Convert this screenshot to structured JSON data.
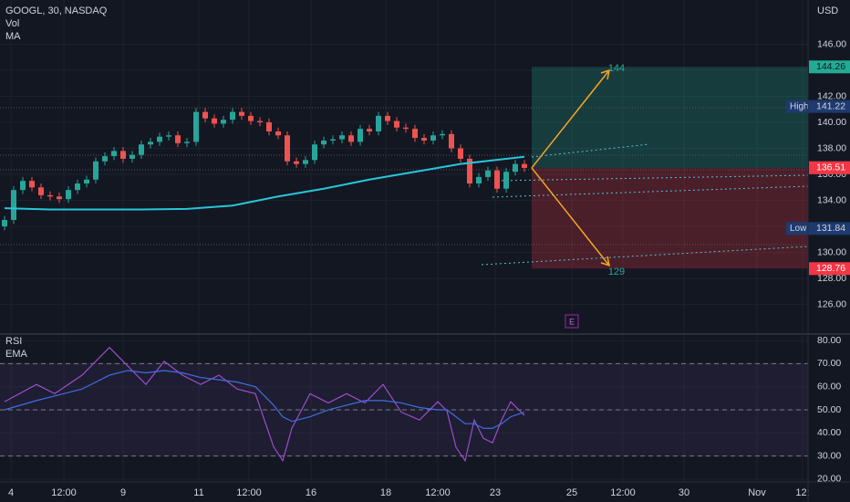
{
  "chart_data": [
    {
      "type": "candlestick",
      "title": "GOOGL, 30, NASDAQ",
      "currency": "USD",
      "volume_label": "Vol",
      "xlim": [
        -0.5,
        88.1
      ],
      "xticks": [
        {
          "value": 0.7,
          "label": "4"
        },
        {
          "value": 6.5,
          "label": "12:00"
        },
        {
          "value": 13,
          "label": "9"
        },
        {
          "value": 21.3,
          "label": "11"
        },
        {
          "value": 26.8,
          "label": "12:00"
        },
        {
          "value": 33.6,
          "label": "16"
        },
        {
          "value": 41.8,
          "label": "18"
        },
        {
          "value": 47.5,
          "label": "12:00"
        },
        {
          "value": 53.8,
          "label": "23"
        },
        {
          "value": 62.2,
          "label": "25"
        },
        {
          "value": 67.8,
          "label": "12:00"
        },
        {
          "value": 74.5,
          "label": "30"
        },
        {
          "value": 82.5,
          "label": "Nov"
        },
        {
          "value": 87.5,
          "label": "12:"
        }
      ],
      "ylim": [
        123.8,
        149.4
      ],
      "yticks": [
        {
          "value": 126,
          "label": "126.00"
        },
        {
          "value": 128,
          "label": "128.00"
        },
        {
          "value": 130,
          "label": "130.00"
        },
        {
          "value": 132,
          "label": "132.00"
        },
        {
          "value": 134,
          "label": "134.00"
        },
        {
          "value": 136,
          "label": "136.00"
        },
        {
          "value": 138,
          "label": "138.00"
        },
        {
          "value": 140,
          "label": "140.00"
        },
        {
          "value": 142,
          "label": "142.00"
        },
        {
          "value": 144,
          "label": "144.00"
        },
        {
          "value": 146,
          "label": "146.00"
        }
      ],
      "up_color": "#26a69a",
      "down_color": "#ef5350",
      "open": [
        132.0,
        132.5,
        134.8,
        135.5,
        135.0,
        134.4,
        134.3,
        134.1,
        134.8,
        135.3,
        135.6,
        137.0,
        137.4,
        137.8,
        137.2,
        137.5,
        138.3,
        138.5,
        138.9,
        139.0,
        138.4,
        138.5,
        140.8,
        140.3,
        139.9,
        140.2,
        140.8,
        140.5,
        140.1,
        140.0,
        139.3,
        139.0,
        137.0,
        136.8,
        137.1,
        138.3,
        138.6,
        138.7,
        139.0,
        138.5,
        139.5,
        139.3,
        140.5,
        140.1,
        139.6,
        139.5,
        138.8,
        138.6,
        139.0,
        139.1,
        138.0,
        137.2,
        135.3,
        135.8,
        136.3,
        134.9,
        136.2,
        136.8
      ],
      "high": [
        132.8,
        135.1,
        135.8,
        135.8,
        135.3,
        134.7,
        134.6,
        135.1,
        135.6,
        135.9,
        137.3,
        137.7,
        138.1,
        138.1,
        137.8,
        138.6,
        138.8,
        139.2,
        139.3,
        139.3,
        138.8,
        141.1,
        141.1,
        140.6,
        140.5,
        141.1,
        141.1,
        140.8,
        140.4,
        140.3,
        139.6,
        139.3,
        137.3,
        137.4,
        138.6,
        138.9,
        139.0,
        139.3,
        139.3,
        139.8,
        139.8,
        140.8,
        140.8,
        140.4,
        139.9,
        139.8,
        139.1,
        139.3,
        139.4,
        139.4,
        138.3,
        137.5,
        136.1,
        136.6,
        136.6,
        136.5,
        137.1,
        137.1
      ],
      "low": [
        131.7,
        132.2,
        134.5,
        134.7,
        134.1,
        134.0,
        133.8,
        133.8,
        134.5,
        135.0,
        135.3,
        136.7,
        137.1,
        136.9,
        136.9,
        137.2,
        138.0,
        138.2,
        138.6,
        138.1,
        138.1,
        138.2,
        140.0,
        139.6,
        139.6,
        139.9,
        140.2,
        139.8,
        139.7,
        139.0,
        138.7,
        136.7,
        136.5,
        136.5,
        136.8,
        138.0,
        138.3,
        138.4,
        138.2,
        138.2,
        139.0,
        139.0,
        139.8,
        139.3,
        139.2,
        138.5,
        138.3,
        138.3,
        138.7,
        137.7,
        136.9,
        135.0,
        135.0,
        135.5,
        134.6,
        134.6,
        135.9,
        136.2
      ],
      "close": [
        132.5,
        134.8,
        135.5,
        135.0,
        134.4,
        134.3,
        134.1,
        134.8,
        135.3,
        135.6,
        137.0,
        137.4,
        137.8,
        137.2,
        137.5,
        138.3,
        138.5,
        138.9,
        139.0,
        138.4,
        138.5,
        140.8,
        140.3,
        139.9,
        140.2,
        140.8,
        140.5,
        140.1,
        140.0,
        139.3,
        139.0,
        137.0,
        136.8,
        137.1,
        138.3,
        138.6,
        138.7,
        139.0,
        138.5,
        139.5,
        139.3,
        140.5,
        140.1,
        139.6,
        139.5,
        138.8,
        138.6,
        139.0,
        139.1,
        138.0,
        137.2,
        135.3,
        135.8,
        136.3,
        134.9,
        136.2,
        136.8,
        136.5
      ],
      "ma": {
        "name": "MA",
        "color": "#26c6da",
        "x": [
          0,
          5,
          10,
          15,
          20,
          25,
          30,
          35,
          40,
          45,
          50,
          55,
          57
        ],
        "values": [
          133.4,
          133.3,
          133.3,
          133.3,
          133.35,
          133.6,
          134.3,
          134.9,
          135.6,
          136.2,
          136.8,
          137.2,
          137.35
        ]
      },
      "price_labels": [
        {
          "value": 144.26,
          "color": "#22ab94",
          "text_color": "#131722"
        },
        {
          "name": "High",
          "value": 141.22,
          "color": "#1e3a6e",
          "text_color": "#d1d4dc"
        },
        {
          "value": 136.51,
          "color": "#5d606b",
          "text_color": "#ffffff"
        },
        {
          "value": 136.51,
          "color": "#f23645",
          "text_color": "#ffffff"
        },
        {
          "name": "Low",
          "value": 131.84,
          "color": "#1e3a6e",
          "text_color": "#d1d4dc"
        },
        {
          "value": 128.76,
          "color": "#f23645",
          "text_color": "#ffffff"
        }
      ],
      "position": {
        "target": 144.26,
        "entry": 136.51,
        "stop": 128.76
      },
      "targets": [
        144,
        129
      ],
      "earnings_marker": "E"
    },
    {
      "type": "line",
      "ylim": [
        18.8,
        82
      ],
      "yticks": [
        {
          "value": 20,
          "label": "20.00"
        },
        {
          "value": 30,
          "label": "30.00"
        },
        {
          "value": 40,
          "label": "40.00"
        },
        {
          "value": 50,
          "label": "50.00"
        },
        {
          "value": 60,
          "label": "60.00"
        },
        {
          "value": 70,
          "label": "70.00"
        },
        {
          "value": 80,
          "label": "80.00"
        }
      ],
      "levels": [
        70,
        50,
        30
      ],
      "x": [
        0,
        3.5,
        5.5,
        8.5,
        11.5,
        13.5,
        15.5,
        17.5,
        19.5,
        21.5,
        23.5,
        25.5,
        27.5,
        29.5,
        30.5,
        31.5,
        33.5,
        35.5,
        37.5,
        39.5,
        41.5,
        43.5,
        45.5,
        47.5,
        48.5,
        49.5,
        50.5,
        51.5,
        52.5,
        53.5,
        54.5,
        55.5,
        57
      ],
      "series": [
        {
          "name": "RSI",
          "color": "#9b4dca",
          "values": [
            53.5,
            61,
            57,
            65,
            77,
            69,
            61,
            71,
            65,
            61,
            65,
            59,
            57,
            34,
            28,
            42,
            57,
            53,
            57,
            53,
            61,
            49,
            45.6,
            53.5,
            49.6,
            33.8,
            28,
            45.6,
            37.7,
            35.7,
            45.6,
            53.5,
            47.6
          ]
        },
        {
          "name": "EMA",
          "color": "#3d6fe0",
          "values": [
            50,
            54,
            56,
            59,
            65,
            67,
            66,
            67,
            66,
            64,
            63,
            62,
            60,
            52,
            47,
            45,
            47,
            50,
            52,
            54,
            54,
            53,
            51,
            50,
            50,
            47,
            44,
            44,
            42,
            42,
            44,
            47,
            49
          ]
        }
      ]
    }
  ]
}
